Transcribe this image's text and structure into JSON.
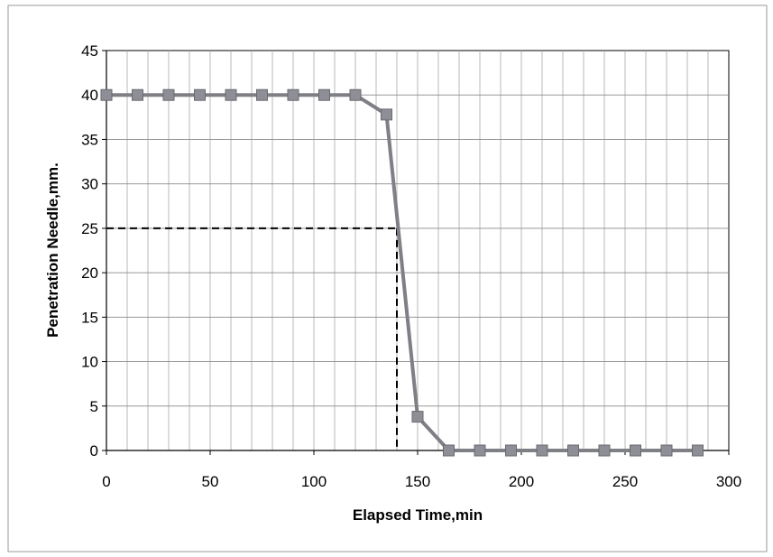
{
  "chart_data": {
    "type": "line",
    "title": "",
    "xlabel": "Elapsed Time,min",
    "ylabel": "Penetration Needle,mm.",
    "xlim": [
      0,
      300
    ],
    "ylim": [
      0,
      45
    ],
    "x_ticks": [
      "0",
      "50",
      "100",
      "150",
      "200",
      "250",
      "300"
    ],
    "y_ticks": [
      "0",
      "5",
      "10",
      "15",
      "20",
      "25",
      "30",
      "35",
      "40",
      "45"
    ],
    "grid": true,
    "legend": "none",
    "series": [
      {
        "color": "#7f7f86",
        "marker": "square",
        "x": [
          0,
          15,
          30,
          45,
          60,
          75,
          90,
          105,
          120,
          135,
          150,
          165,
          180,
          195,
          210,
          225,
          240,
          255,
          270,
          285
        ],
        "y": [
          40,
          40,
          40,
          40,
          40,
          40,
          40,
          40,
          40,
          37.8,
          3.8,
          0,
          0,
          0,
          0,
          0,
          0,
          0,
          0,
          0
        ]
      }
    ],
    "reference_lines": {
      "style": "dashed",
      "color": "#000000",
      "x": 140,
      "y": 25
    }
  }
}
